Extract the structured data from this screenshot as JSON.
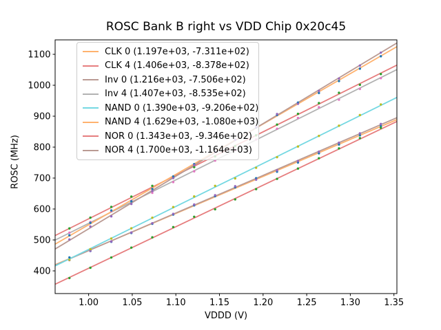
{
  "figure": {
    "background_color": "#ffffff",
    "axes_edge_color": "#000000",
    "text_color": "#000000",
    "legend_border_color": "#cccccc"
  },
  "chart_data": {
    "type": "scatter",
    "subtype": "scatter-with-linear-fit-lines",
    "title": "ROSC Bank B right vs VDD Chip 0x20c45",
    "xlabel": "VDDD (V)",
    "ylabel": "ROSC (MHz)",
    "grid": false,
    "legend_position": "upper left",
    "legend_note": "label format: name (slope, intercept) of linear fit ROSC = slope*VDDD + intercept",
    "xlim": [
      0.9616,
      1.3534
    ],
    "ylim": [
      326.7,
      1146.7
    ],
    "x_ticks": {
      "values": [
        1.0,
        1.05,
        1.1,
        1.15,
        1.2,
        1.25,
        1.3,
        1.35
      ],
      "labels": [
        "1.00",
        "1.05",
        "1.10",
        "1.15",
        "1.20",
        "1.25",
        "1.30",
        "1.35"
      ]
    },
    "y_ticks": {
      "values": [
        400,
        500,
        600,
        700,
        800,
        900,
        1000,
        1100
      ],
      "labels": [
        "400",
        "500",
        "600",
        "700",
        "800",
        "900",
        "1000",
        "1100"
      ]
    },
    "x": [
      0.978,
      1.002,
      1.026,
      1.049,
      1.073,
      1.097,
      1.121,
      1.145,
      1.168,
      1.192,
      1.216,
      1.24,
      1.264,
      1.287,
      1.311,
      1.335
    ],
    "series": [
      {
        "name": "CLK 0",
        "label": "CLK 0 (1.197e+03, -7.311e+02)",
        "slope": 1197,
        "intercept": -731.1,
        "line_color": "#ffb26e",
        "marker_color": "#1f77b4"
      },
      {
        "name": "CLK 4",
        "label": "CLK 4 (1.406e+03, -8.378e+02)",
        "slope": 1406,
        "intercept": -837.8,
        "line_color": "#e67d7e",
        "marker_color": "#2ca02c"
      },
      {
        "name": "Inv 0",
        "label": "Inv 0 (1.216e+03, -7.506e+02)",
        "slope": 1216,
        "intercept": -750.6,
        "line_color": "#ba9a93",
        "marker_color": "#9467bd"
      },
      {
        "name": "Inv 4",
        "label": "Inv 4 (1.407e+03, -8.535e+02)",
        "slope": 1407,
        "intercept": -853.5,
        "line_color": "#b2b2b2",
        "marker_color": "#e377c2"
      },
      {
        "name": "NAND 0",
        "label": "NAND 0 (1.390e+03, -9.206e+02)",
        "slope": 1390,
        "intercept": -920.6,
        "line_color": "#74d8e2",
        "marker_color": "#bcbd22"
      },
      {
        "name": "NAND 4",
        "label": "NAND 4 (1.629e+03, -1.080e+03)",
        "slope": 1629,
        "intercept": -1080.0,
        "line_color": "#ffb26e",
        "marker_color": "#1f77b4"
      },
      {
        "name": "NOR 0",
        "label": "NOR 0 (1.343e+03, -9.346e+02)",
        "slope": 1343,
        "intercept": -934.6,
        "line_color": "#e67d7e",
        "marker_color": "#2ca02c"
      },
      {
        "name": "NOR 4",
        "label": "NOR 4 (1.700e+03, -1.164e+03)",
        "slope": 1700,
        "intercept": -1164.0,
        "line_color": "#ba9a93",
        "marker_color": "#9467bd"
      }
    ]
  }
}
